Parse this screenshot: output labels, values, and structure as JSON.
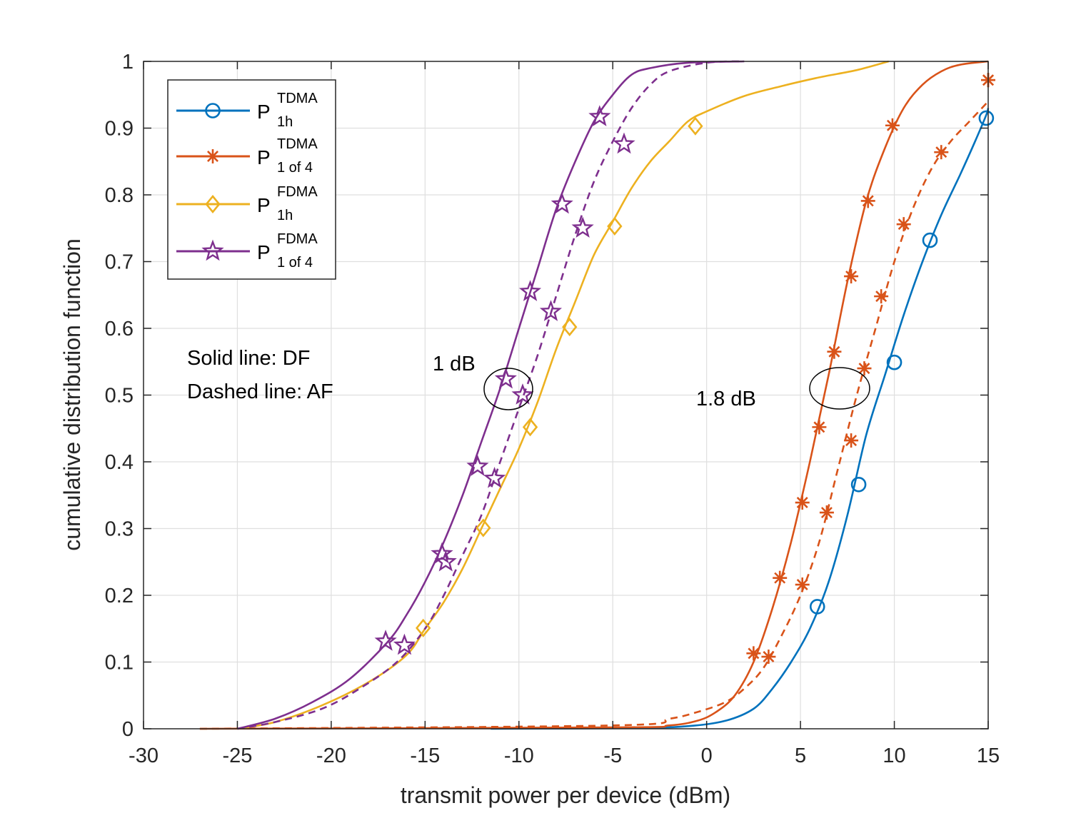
{
  "chart_data": {
    "type": "line",
    "xlabel": "transmit power per device (dBm)",
    "ylabel": "cumulative distribution function",
    "xlim": [
      -30,
      15
    ],
    "ylim": [
      0,
      1
    ],
    "xticks": [
      -30,
      -25,
      -20,
      -15,
      -10,
      -5,
      0,
      5,
      10,
      15
    ],
    "yticks": [
      0,
      0.1,
      0.2,
      0.3,
      0.4,
      0.5,
      0.6,
      0.7,
      0.8,
      0.9,
      1
    ],
    "xtick_labels": [
      "-30",
      "-25",
      "-20",
      "-15",
      "-10",
      "-5",
      "0",
      "5",
      "10",
      "15"
    ],
    "ytick_labels": [
      "0",
      "0.1",
      "0.2",
      "0.3",
      "0.4",
      "0.5",
      "0.6",
      "0.7",
      "0.8",
      "0.9",
      "1"
    ],
    "grid": true,
    "legend_position": "top-left",
    "series": [
      {
        "id": "tdma_1h",
        "legend_main": "P",
        "legend_sup": "TDMA",
        "legend_sub": "1h",
        "color": "#0072BD",
        "marker": "circle",
        "solid": [
          [
            -11.5,
            0
          ],
          [
            -4,
            0.001
          ],
          [
            -1,
            0.004
          ],
          [
            1,
            0.012
          ],
          [
            2.5,
            0.03
          ],
          [
            3.5,
            0.06
          ],
          [
            4.5,
            0.1
          ],
          [
            5.5,
            0.15
          ],
          [
            6.5,
            0.22
          ],
          [
            7.5,
            0.32
          ],
          [
            8.5,
            0.44
          ],
          [
            9.5,
            0.53
          ],
          [
            10.5,
            0.62
          ],
          [
            11.5,
            0.7
          ],
          [
            12.5,
            0.77
          ],
          [
            13.5,
            0.83
          ],
          [
            14.3,
            0.88
          ],
          [
            14.9,
            0.92
          ],
          [
            15,
            0.93
          ]
        ],
        "solid_markers": [
          [
            5.9,
            0.183
          ],
          [
            8.1,
            0.366
          ],
          [
            10,
            0.549
          ],
          [
            11.9,
            0.732
          ],
          [
            14.9,
            0.915
          ]
        ]
      },
      {
        "id": "tdma_1of4",
        "legend_main": "P",
        "legend_sup": "TDMA",
        "legend_sub": "1 of 4",
        "color": "#D95319",
        "marker": "asterisk",
        "solid": [
          [
            -27,
            0
          ],
          [
            -5,
            0.002
          ],
          [
            -2,
            0.005
          ],
          [
            -0.5,
            0.012
          ],
          [
            0.5,
            0.025
          ],
          [
            1.5,
            0.05
          ],
          [
            2.5,
            0.1
          ],
          [
            3.5,
            0.18
          ],
          [
            4.5,
            0.28
          ],
          [
            5.5,
            0.4
          ],
          [
            6.5,
            0.53
          ],
          [
            7.5,
            0.67
          ],
          [
            8.5,
            0.79
          ],
          [
            9.5,
            0.87
          ],
          [
            10.5,
            0.93
          ],
          [
            11.5,
            0.965
          ],
          [
            12.5,
            0.985
          ],
          [
            13.5,
            0.995
          ],
          [
            15,
            1
          ]
        ],
        "solid_markers": [
          [
            2.5,
            0.113
          ],
          [
            3.9,
            0.226
          ],
          [
            5.1,
            0.339
          ],
          [
            6,
            0.452
          ],
          [
            6.8,
            0.565
          ],
          [
            7.7,
            0.678
          ],
          [
            8.6,
            0.791
          ],
          [
            9.9,
            0.904
          ],
          [
            15,
            0.972
          ]
        ],
        "dashed": [
          [
            -27,
            0
          ],
          [
            -5,
            0.005
          ],
          [
            -2,
            0.015
          ],
          [
            -0.5,
            0.025
          ],
          [
            1,
            0.04
          ],
          [
            2,
            0.06
          ],
          [
            3,
            0.09
          ],
          [
            4,
            0.14
          ],
          [
            5,
            0.2
          ],
          [
            6,
            0.28
          ],
          [
            7,
            0.39
          ],
          [
            8,
            0.5
          ],
          [
            9,
            0.6
          ],
          [
            10,
            0.7
          ],
          [
            11,
            0.78
          ],
          [
            12,
            0.84
          ],
          [
            13,
            0.88
          ],
          [
            14,
            0.91
          ],
          [
            15,
            0.94
          ]
        ],
        "dashed_markers": [
          [
            3.3,
            0.108
          ],
          [
            5.1,
            0.216
          ],
          [
            6.4,
            0.324
          ],
          [
            7.7,
            0.432
          ],
          [
            8.4,
            0.54
          ],
          [
            9.3,
            0.648
          ],
          [
            10.5,
            0.756
          ],
          [
            12.5,
            0.864
          ],
          [
            15,
            0.972
          ]
        ]
      },
      {
        "id": "fdma_1h",
        "legend_main": "P",
        "legend_sup": "FDMA",
        "legend_sub": "1h",
        "color": "#EDB120",
        "marker": "diamond",
        "solid": [
          [
            -25,
            0
          ],
          [
            -23,
            0.01
          ],
          [
            -20.5,
            0.035
          ],
          [
            -18,
            0.07
          ],
          [
            -16,
            0.11
          ],
          [
            -15,
            0.15
          ],
          [
            -14,
            0.19
          ],
          [
            -13,
            0.24
          ],
          [
            -12,
            0.3
          ],
          [
            -11,
            0.36
          ],
          [
            -10,
            0.42
          ],
          [
            -9,
            0.49
          ],
          [
            -8,
            0.57
          ],
          [
            -7,
            0.64
          ],
          [
            -6,
            0.71
          ],
          [
            -5,
            0.76
          ],
          [
            -4,
            0.81
          ],
          [
            -3,
            0.85
          ],
          [
            -2,
            0.88
          ],
          [
            -1,
            0.91
          ],
          [
            0,
            0.925
          ],
          [
            2,
            0.948
          ],
          [
            4,
            0.963
          ],
          [
            6,
            0.976
          ],
          [
            8,
            0.987
          ],
          [
            9.7,
            1
          ]
        ],
        "solid_markers": [
          [
            -15.1,
            0.151
          ],
          [
            -11.9,
            0.301
          ],
          [
            -9.4,
            0.452
          ],
          [
            -7.3,
            0.602
          ],
          [
            -4.9,
            0.753
          ],
          [
            -0.6,
            0.903
          ]
        ]
      },
      {
        "id": "fdma_1of4",
        "legend_main": "P",
        "legend_sup": "FDMA",
        "legend_sub": "1 of 4",
        "color": "#7E2F8E",
        "marker": "star",
        "solid": [
          [
            -25,
            0
          ],
          [
            -23,
            0.015
          ],
          [
            -21,
            0.04
          ],
          [
            -19,
            0.075
          ],
          [
            -17,
            0.13
          ],
          [
            -16,
            0.17
          ],
          [
            -15,
            0.22
          ],
          [
            -14,
            0.28
          ],
          [
            -13,
            0.35
          ],
          [
            -12,
            0.43
          ],
          [
            -11,
            0.51
          ],
          [
            -10,
            0.6
          ],
          [
            -9,
            0.69
          ],
          [
            -8,
            0.78
          ],
          [
            -7,
            0.85
          ],
          [
            -6,
            0.91
          ],
          [
            -5,
            0.95
          ],
          [
            -4,
            0.98
          ],
          [
            -3,
            0.99
          ],
          [
            -1,
            0.998
          ],
          [
            2,
            1
          ]
        ],
        "solid_markers": [
          [
            -17.1,
            0.131
          ],
          [
            -14.1,
            0.262
          ],
          [
            -12.2,
            0.393
          ],
          [
            -10.7,
            0.524
          ],
          [
            -9.4,
            0.655
          ],
          [
            -7.7,
            0.786
          ],
          [
            -5.7,
            0.917
          ]
        ],
        "dashed": [
          [
            -25,
            0
          ],
          [
            -23,
            0.01
          ],
          [
            -20.5,
            0.03
          ],
          [
            -18.5,
            0.06
          ],
          [
            -16.5,
            0.1
          ],
          [
            -15,
            0.15
          ],
          [
            -14,
            0.2
          ],
          [
            -13,
            0.26
          ],
          [
            -12,
            0.32
          ],
          [
            -11,
            0.4
          ],
          [
            -10,
            0.48
          ],
          [
            -9,
            0.56
          ],
          [
            -8,
            0.65
          ],
          [
            -7,
            0.74
          ],
          [
            -6,
            0.82
          ],
          [
            -5,
            0.88
          ],
          [
            -4,
            0.93
          ],
          [
            -3,
            0.965
          ],
          [
            -2,
            0.985
          ],
          [
            0,
            0.998
          ],
          [
            2,
            1
          ]
        ],
        "dashed_markers": [
          [
            -16.1,
            0.125
          ],
          [
            -13.9,
            0.25
          ],
          [
            -11.3,
            0.375
          ],
          [
            -9.8,
            0.5
          ],
          [
            -8.3,
            0.625
          ],
          [
            -6.6,
            0.75
          ],
          [
            -4.4,
            0.876
          ]
        ]
      }
    ],
    "annotations": [
      {
        "id": "solid-note",
        "text": "Solid line: DF"
      },
      {
        "id": "dashed-note",
        "text": "Dashed line: AF"
      },
      {
        "id": "gap-1db",
        "text": "1 dB"
      },
      {
        "id": "gap-18db",
        "text": "1.8 dB"
      }
    ]
  }
}
